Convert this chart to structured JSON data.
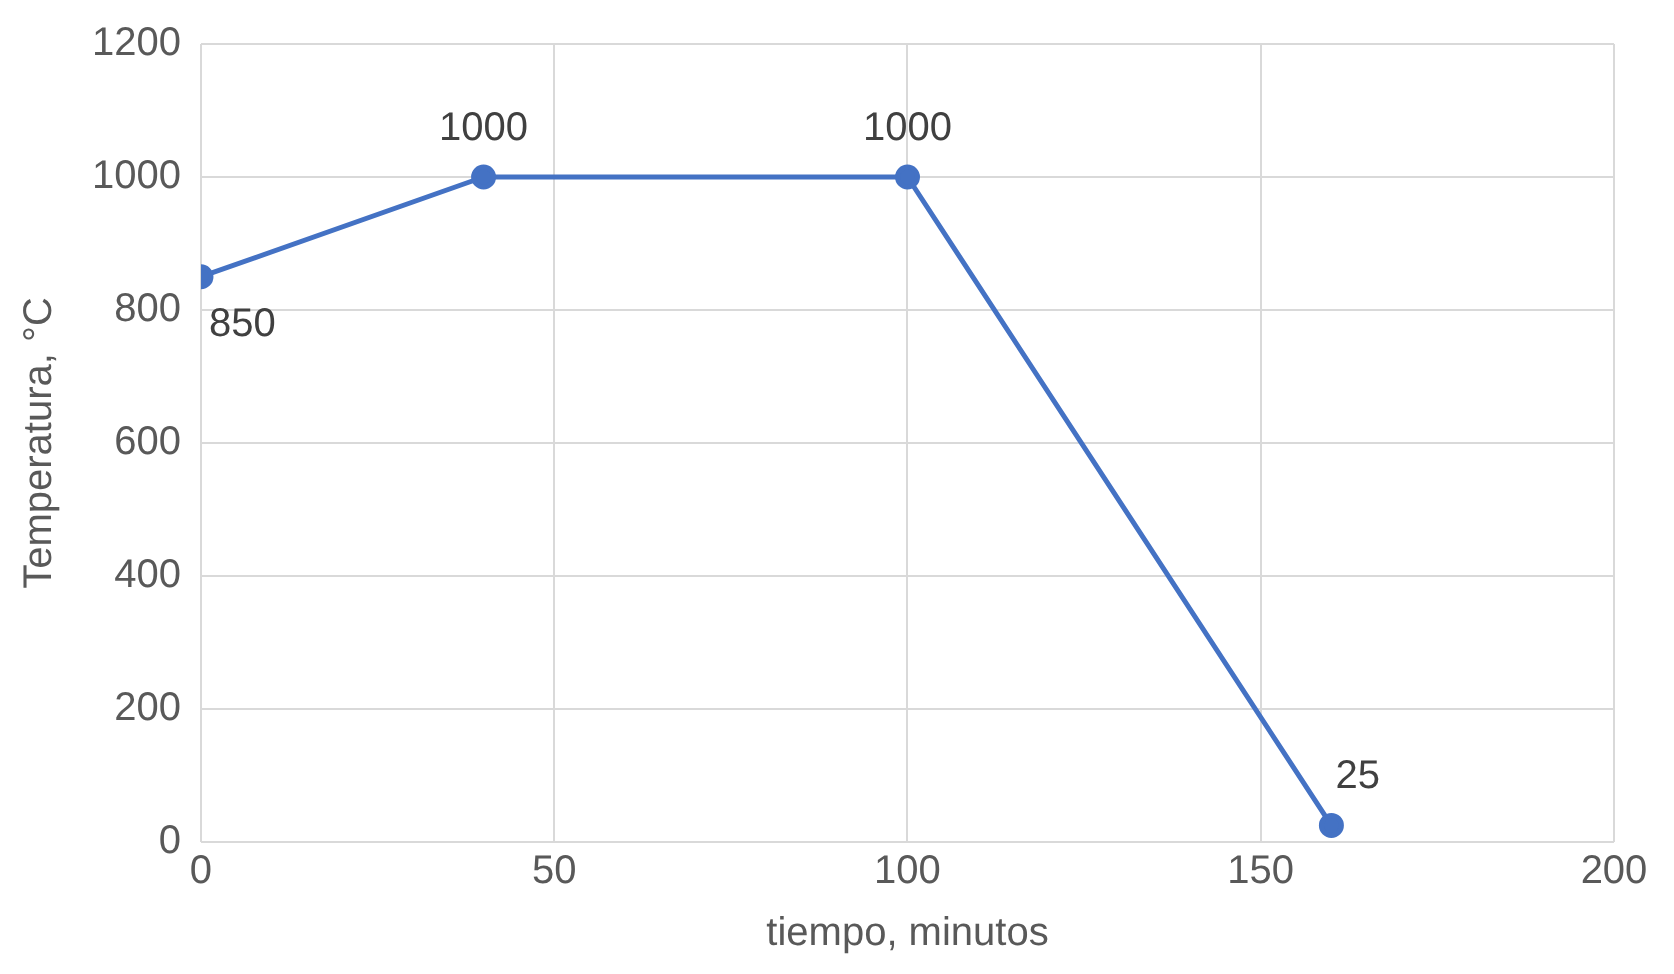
{
  "chart_data": {
    "type": "line",
    "xlabel": "tiempo, minutos",
    "ylabel": "Temperatura, °C",
    "x": [
      0,
      40,
      100,
      160
    ],
    "series": [
      {
        "color": "#4472c4",
        "values": [
          850,
          1000,
          1000,
          25
        ]
      }
    ],
    "xlim": [
      0,
      200
    ],
    "xticks": [
      0,
      50,
      100,
      150,
      200
    ],
    "ylim": [
      0,
      1200
    ],
    "yticks": [
      0,
      200,
      400,
      600,
      800,
      1000,
      1200
    ],
    "grid": true,
    "legend": false,
    "marker": "circle",
    "line_style": "solid",
    "data_labels": true
  }
}
